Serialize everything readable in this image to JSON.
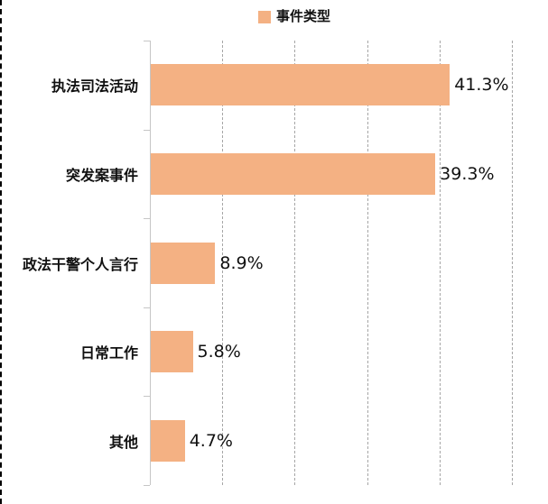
{
  "legend": {
    "label": "事件类型",
    "marker_color": "#F4B183"
  },
  "chart_data": {
    "type": "bar",
    "orientation": "horizontal",
    "title": "",
    "series_name": "事件类型",
    "categories": [
      "执法司法活动",
      "突发案事件",
      "政法干警个人言行",
      "日常工作",
      "其他"
    ],
    "values": [
      41.3,
      39.3,
      8.9,
      5.8,
      4.7
    ],
    "value_labels": [
      "41.3%",
      "39.3%",
      "8.9%",
      "5.8%",
      "4.7%"
    ],
    "xlim": [
      0,
      50
    ],
    "grid_interval": 10,
    "grid": "dashed-vertical",
    "legend_position": "top-center",
    "bar_color": "#F4B183",
    "gridline_color": "#A6A6A6",
    "axis_color": "#C6C6C6",
    "text_color": "#111111",
    "background_color": "#FFFFFF"
  }
}
